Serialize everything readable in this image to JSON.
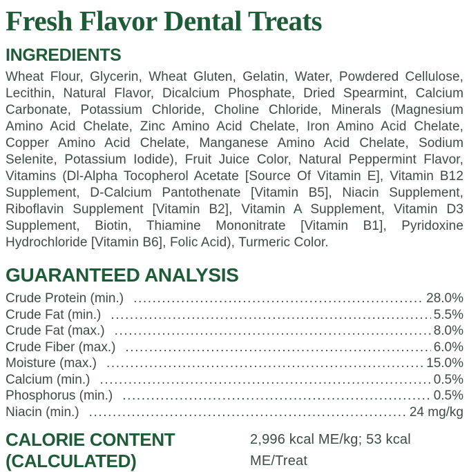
{
  "colors": {
    "accent_green": "#1e5c38",
    "body_text": "#3e4b44"
  },
  "page": {
    "title": "Fresh Flavor Dental Treats"
  },
  "ingredients": {
    "heading": "INGREDIENTS",
    "text": "Wheat Flour, Glycerin, Wheat Gluten, Gelatin, Water, Powdered Cellulose, Lecithin, Natural Flavor, Dicalcium Phosphate, Dried Spearmint, Calcium Carbonate, Potassium Chloride, Choline Chloride, Minerals (Magnesium Amino Acid Chelate, Zinc Amino Acid Chelate, Iron Amino Acid Chelate, Copper Amino Acid Chelate, Manganese Amino Acid Chelate, Sodium Selenite, Potassium Iodide), Fruit Juice Color, Natural Peppermint Flavor, Vitamins (Dl-Alpha Tocopherol Acetate [Source Of Vitamin E], Vitamin B12 Supplement, D-Calcium Pantothenate [Vitamin B5], Niacin Supplement, Riboflavin Supplement [Vitamin B2], Vitamin A Supplement, Vitamin D3 Supplement, Biotin, Thiamine Mononitrate [Vitamin B1], Pyridoxine Hydrochloride [Vitamin B6], Folic Acid), Turmeric Color."
  },
  "guaranteed_analysis": {
    "heading": "GUARANTEED ANALYSIS",
    "rows": [
      {
        "label": "Crude Protein (min.)",
        "value": "28.0%"
      },
      {
        "label": "Crude Fat (min.)",
        "value": "5.5%"
      },
      {
        "label": "Crude Fat (max.)",
        "value": "8.0%"
      },
      {
        "label": "Crude Fiber (max.)",
        "value": "6.0%"
      },
      {
        "label": "Moisture (max.)",
        "value": "15.0%"
      },
      {
        "label": "Calcium (min.)",
        "value": "0.5%"
      },
      {
        "label": "Phosphorus (min.)",
        "value": "0.5%"
      },
      {
        "label": "Niacin (min.)",
        "value": "24 mg/kg"
      }
    ]
  },
  "calorie_content": {
    "heading_line1": "CALORIE CONTENT",
    "heading_line2": "(CALCULATED)",
    "value": "2,996 kcal ME/kg; 53 kcal ME/Treat"
  }
}
